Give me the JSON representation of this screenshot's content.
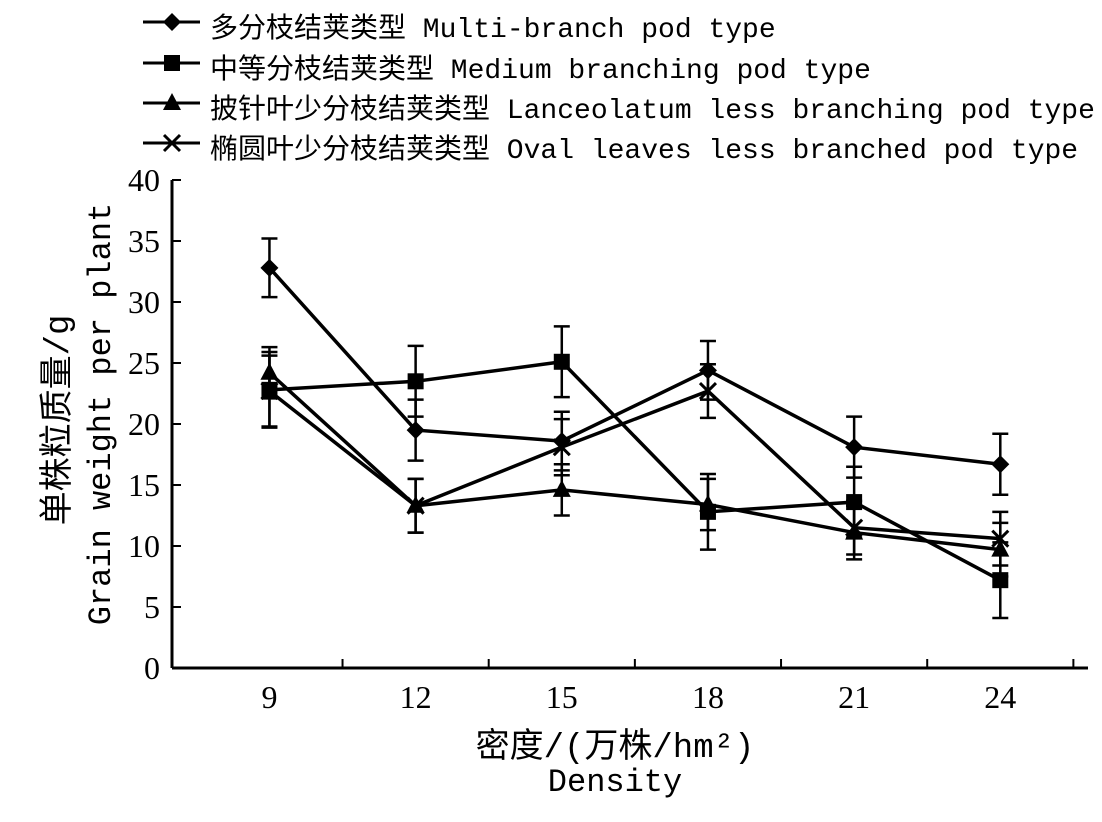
{
  "chart_data": {
    "type": "line",
    "x": [
      9,
      12,
      15,
      18,
      21,
      24
    ],
    "xlabel_cn": "密度/(万株/hm²)",
    "xlabel_en": "Density",
    "ylabel_cn": "单株粒质量/g",
    "ylabel_en": "Grain weight per plant",
    "ylim": [
      0,
      40
    ],
    "yticks": [
      0,
      5,
      10,
      15,
      20,
      25,
      30,
      35,
      40
    ],
    "xticks": [
      "9",
      "12",
      "15",
      "18",
      "21",
      "24"
    ],
    "grid": false,
    "legend_position": "top",
    "series": [
      {
        "name": "多分枝结荚类型 Multi-branch pod type",
        "marker": "diamond",
        "values": [
          32.8,
          19.5,
          18.6,
          24.4,
          18.1,
          16.7
        ],
        "errors": [
          2.4,
          2.5,
          2.4,
          2.4,
          2.5,
          2.5
        ]
      },
      {
        "name": "中等分枝结荚类型 Medium branching pod type",
        "marker": "square",
        "values": [
          22.8,
          23.5,
          25.1,
          12.8,
          13.6,
          7.2
        ],
        "errors": [
          3.1,
          2.9,
          2.9,
          3.1,
          2.9,
          3.1
        ]
      },
      {
        "name": "披针叶少分枝结荚类型 Lanceolatum less branching pod type",
        "marker": "triangle",
        "values": [
          24.2,
          13.3,
          14.6,
          13.4,
          11.1,
          9.7
        ],
        "errors": [
          2.1,
          2.2,
          2.1,
          2.1,
          2.2,
          2.2
        ]
      },
      {
        "name": "椭圆叶少分枝结荚类型 Oval leaves less branched pod type",
        "marker": "cross",
        "values": [
          22.7,
          13.3,
          18.1,
          22.7,
          11.5,
          10.6
        ],
        "errors": [
          2.9,
          2.2,
          2.3,
          2.2,
          2.2,
          2.2
        ]
      }
    ]
  }
}
